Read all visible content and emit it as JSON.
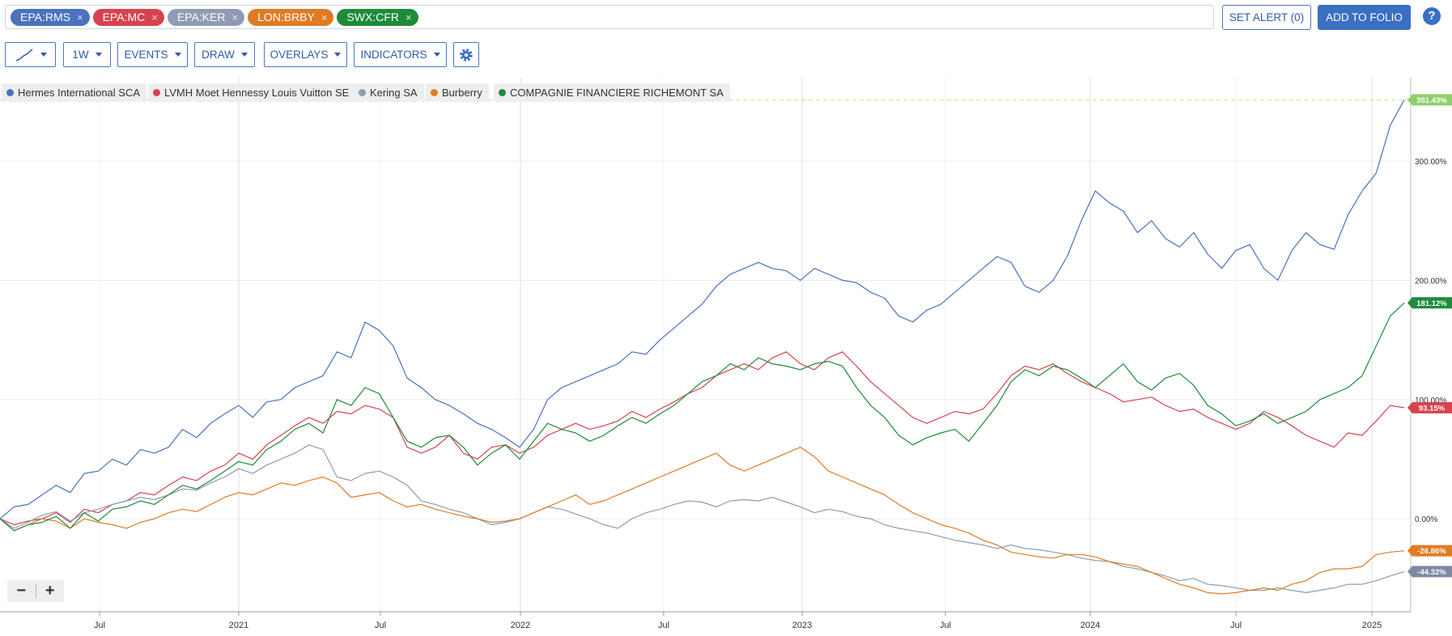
{
  "symbols": [
    {
      "label": "EPA:RMS",
      "color": "#4a72bd"
    },
    {
      "label": "EPA:MC",
      "color": "#d6434f"
    },
    {
      "label": "EPA:KER",
      "color": "#8e9bb2"
    },
    {
      "label": "LON:BRBY",
      "color": "#e07b23"
    },
    {
      "label": "SWX:CFR",
      "color": "#1e8b3a"
    }
  ],
  "chip_close": "×",
  "header": {
    "set_alert": "SET ALERT  (0)",
    "add_to_folio": "ADD TO FOLIO",
    "help": "?"
  },
  "toolbar": {
    "interval": "1W",
    "events": "EVENTS",
    "draw": "DRAW",
    "overlays": "OVERLAYS",
    "indicators": "INDICATORS"
  },
  "zoom": {
    "out": "−",
    "in": "+"
  },
  "chart_data": {
    "type": "line",
    "x_ticks": [
      "Jul",
      "2021",
      "Jul",
      "2022",
      "Jul",
      "2023",
      "Jul",
      "2024",
      "Jul",
      "2025"
    ],
    "y_ticks": [
      "0.00%",
      "100.00%",
      "200.00%",
      "300.00%"
    ],
    "y_unit": "%",
    "ylim": [
      -78,
      370
    ],
    "grid": true,
    "legend_position": "top-left",
    "reference_line": 351.43,
    "end_badges": [
      {
        "series": "Hermes International SCA",
        "label": "351.43%",
        "value": 351.43,
        "color": "#8fcf6b"
      },
      {
        "series": "COMPAGNIE FINANCIERE RICHEMONT SA",
        "label": "181.12%",
        "value": 181.12,
        "color": "#1e8b3a"
      },
      {
        "series": "LVMH Moet Hennessy Louis Vuitton SE",
        "label": "93.15%",
        "value": 93.15,
        "color": "#d6434f"
      },
      {
        "series": "Burberry",
        "label": "-26.86%",
        "value": -26.86,
        "color": "#e07b23"
      },
      {
        "series": "Kering SA",
        "label": "-44.32%",
        "value": -44.32,
        "color": "#7d8aa3"
      }
    ],
    "series": [
      {
        "name": "Hermes International SCA",
        "color": "#4a72bd",
        "values": [
          0,
          10,
          12,
          20,
          28,
          22,
          38,
          40,
          50,
          45,
          58,
          55,
          60,
          75,
          68,
          80,
          88,
          95,
          85,
          98,
          100,
          110,
          115,
          120,
          140,
          135,
          165,
          158,
          145,
          118,
          110,
          100,
          95,
          88,
          80,
          75,
          68,
          60,
          75,
          100,
          110,
          115,
          120,
          125,
          130,
          140,
          138,
          150,
          160,
          170,
          180,
          195,
          205,
          210,
          215,
          210,
          208,
          200,
          210,
          205,
          200,
          198,
          190,
          185,
          170,
          165,
          175,
          180,
          190,
          200,
          210,
          220,
          215,
          195,
          190,
          200,
          220,
          250,
          275,
          265,
          258,
          240,
          250,
          235,
          228,
          240,
          222,
          210,
          225,
          230,
          210,
          200,
          225,
          240,
          230,
          226,
          255,
          275,
          290,
          330,
          351.43
        ]
      },
      {
        "name": "LVMH Moet Hennessy Louis Vuitton SE",
        "color": "#d6434f",
        "values": [
          0,
          -5,
          -2,
          0,
          5,
          -3,
          8,
          5,
          12,
          15,
          22,
          20,
          28,
          35,
          32,
          40,
          45,
          55,
          50,
          62,
          70,
          78,
          85,
          80,
          90,
          88,
          95,
          92,
          85,
          60,
          55,
          60,
          70,
          55,
          50,
          60,
          62,
          55,
          60,
          70,
          75,
          80,
          75,
          78,
          82,
          90,
          85,
          92,
          98,
          105,
          110,
          120,
          125,
          130,
          125,
          135,
          140,
          130,
          125,
          135,
          140,
          128,
          115,
          105,
          95,
          85,
          80,
          85,
          90,
          88,
          92,
          105,
          120,
          128,
          125,
          130,
          122,
          115,
          110,
          105,
          98,
          100,
          102,
          95,
          90,
          92,
          85,
          80,
          75,
          80,
          90,
          85,
          78,
          70,
          65,
          60,
          72,
          70,
          82,
          95,
          93.15
        ]
      },
      {
        "name": "Kering SA",
        "color": "#8e9bb2",
        "values": [
          0,
          -8,
          -3,
          3,
          6,
          -2,
          5,
          8,
          12,
          15,
          18,
          16,
          20,
          25,
          24,
          30,
          35,
          42,
          38,
          45,
          50,
          55,
          62,
          58,
          35,
          32,
          38,
          40,
          35,
          28,
          15,
          12,
          8,
          5,
          0,
          -5,
          -3,
          0,
          5,
          10,
          8,
          4,
          0,
          -5,
          -8,
          0,
          5,
          8,
          12,
          15,
          14,
          10,
          15,
          16,
          15,
          18,
          14,
          10,
          5,
          8,
          6,
          2,
          0,
          -5,
          -8,
          -10,
          -12,
          -15,
          -18,
          -20,
          -22,
          -25,
          -22,
          -25,
          -26,
          -28,
          -30,
          -33,
          -35,
          -36,
          -40,
          -42,
          -45,
          -48,
          -52,
          -50,
          -55,
          -56,
          -58,
          -60,
          -60,
          -58,
          -60,
          -62,
          -60,
          -58,
          -55,
          -55,
          -52,
          -48,
          -44.32
        ]
      },
      {
        "name": "Burberry",
        "color": "#e07b23",
        "values": [
          0,
          -10,
          -5,
          0,
          -2,
          -8,
          0,
          -3,
          -5,
          -8,
          -3,
          0,
          5,
          8,
          6,
          12,
          18,
          22,
          20,
          25,
          30,
          28,
          32,
          35,
          30,
          18,
          20,
          22,
          15,
          10,
          12,
          8,
          5,
          2,
          0,
          -3,
          -2,
          0,
          5,
          10,
          15,
          20,
          12,
          15,
          20,
          25,
          30,
          35,
          40,
          45,
          50,
          55,
          45,
          40,
          45,
          50,
          55,
          60,
          52,
          40,
          35,
          30,
          25,
          20,
          12,
          5,
          0,
          -5,
          -8,
          -12,
          -18,
          -22,
          -28,
          -30,
          -32,
          -33,
          -30,
          -30,
          -32,
          -36,
          -38,
          -40,
          -45,
          -50,
          -55,
          -58,
          -62,
          -63,
          -62,
          -60,
          -58,
          -60,
          -55,
          -52,
          -45,
          -42,
          -42,
          -40,
          -30,
          -28,
          -26.86
        ]
      },
      {
        "name": "COMPAGNIE FINANCIERE RICHEMONT SA",
        "color": "#1e8b3a",
        "values": [
          0,
          -10,
          -5,
          -3,
          2,
          -8,
          5,
          -2,
          8,
          10,
          15,
          12,
          20,
          28,
          25,
          32,
          40,
          48,
          45,
          58,
          65,
          75,
          80,
          72,
          100,
          95,
          110,
          105,
          85,
          65,
          60,
          68,
          70,
          60,
          45,
          55,
          62,
          50,
          65,
          80,
          75,
          72,
          65,
          70,
          78,
          85,
          80,
          88,
          95,
          105,
          115,
          120,
          130,
          125,
          135,
          130,
          128,
          125,
          130,
          132,
          128,
          110,
          95,
          85,
          70,
          62,
          68,
          72,
          75,
          65,
          80,
          95,
          115,
          125,
          120,
          128,
          125,
          118,
          110,
          120,
          130,
          115,
          108,
          118,
          122,
          112,
          95,
          88,
          78,
          82,
          88,
          80,
          85,
          90,
          100,
          105,
          110,
          120,
          145,
          170,
          181.12
        ]
      }
    ]
  }
}
